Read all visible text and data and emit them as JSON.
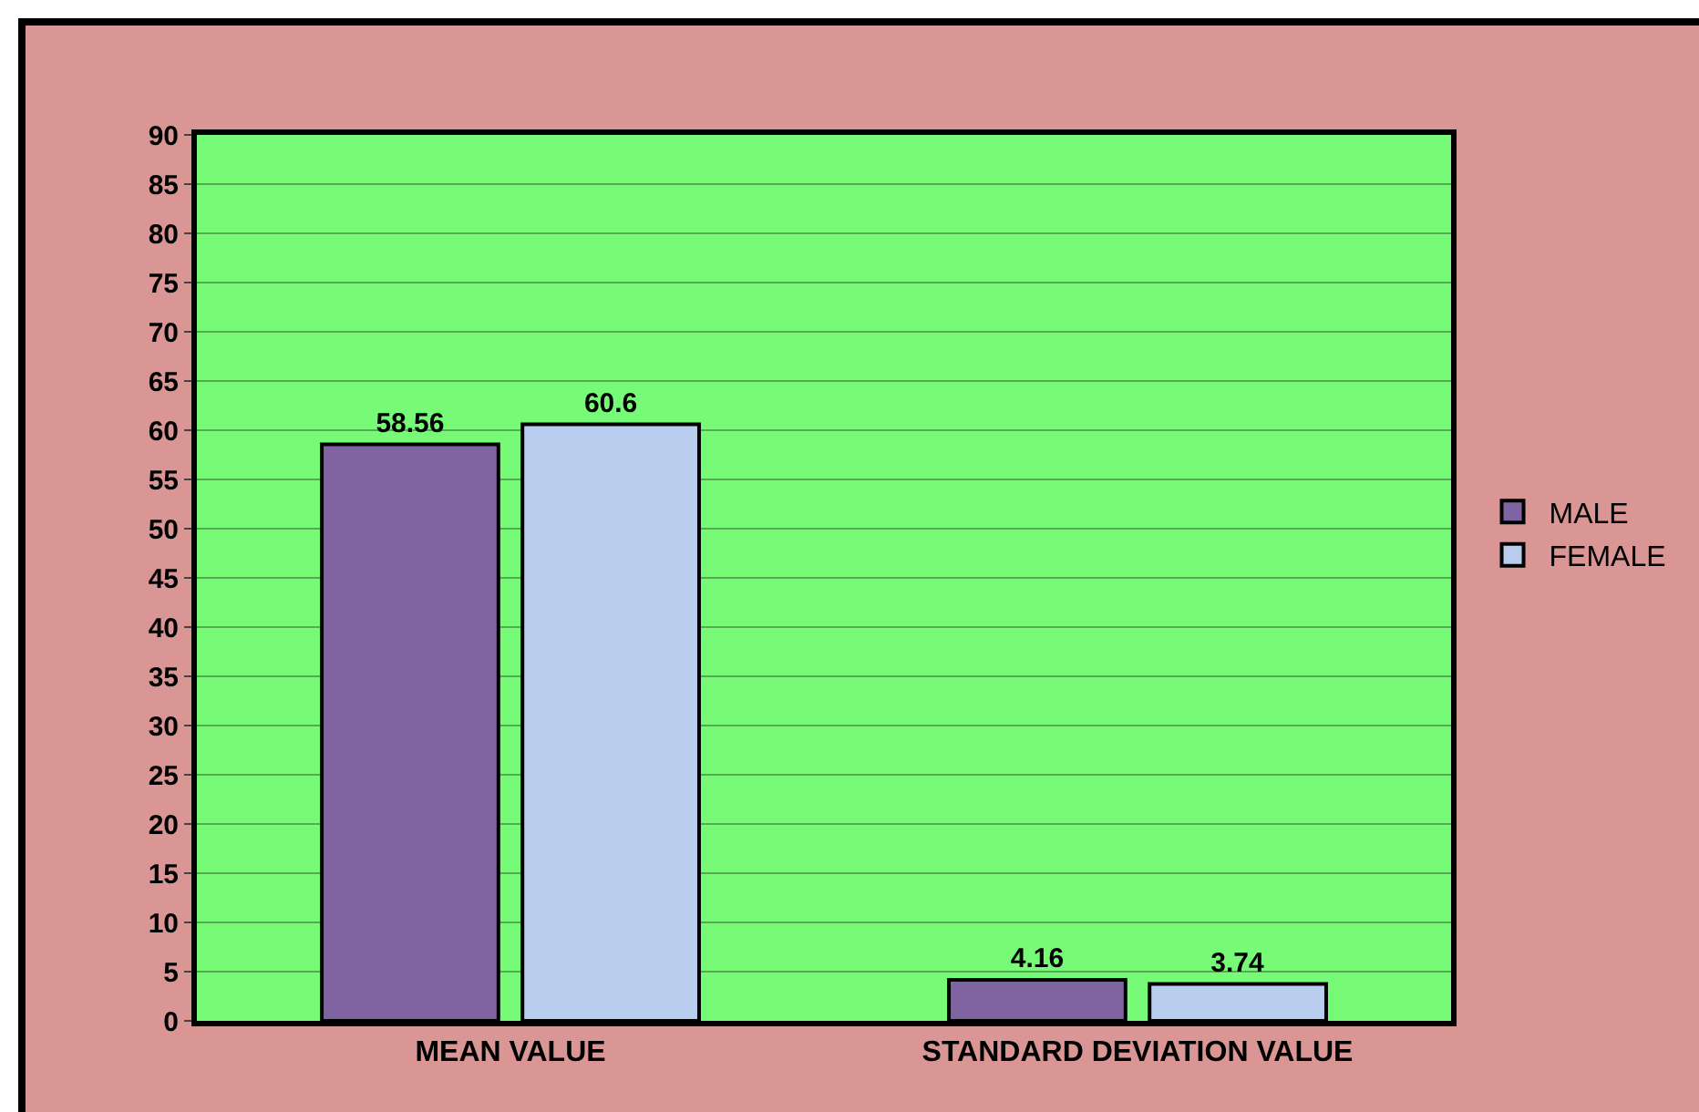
{
  "chart_data": {
    "type": "bar",
    "categories": [
      "MEAN VALUE",
      "STANDARD DEVIATION VALUE"
    ],
    "series": [
      {
        "name": "MALE",
        "color": "#8064a2",
        "values": [
          58.56,
          4.16
        ]
      },
      {
        "name": "FEMALE",
        "color": "#b9cdee",
        "values": [
          60.6,
          3.74
        ]
      }
    ],
    "ylim": [
      0,
      90
    ],
    "yticks": [
      0,
      5,
      10,
      15,
      20,
      25,
      30,
      35,
      40,
      45,
      50,
      55,
      60,
      65,
      70,
      75,
      80,
      85,
      90
    ],
    "grid": "y",
    "legend": "right",
    "data_labels": true
  }
}
